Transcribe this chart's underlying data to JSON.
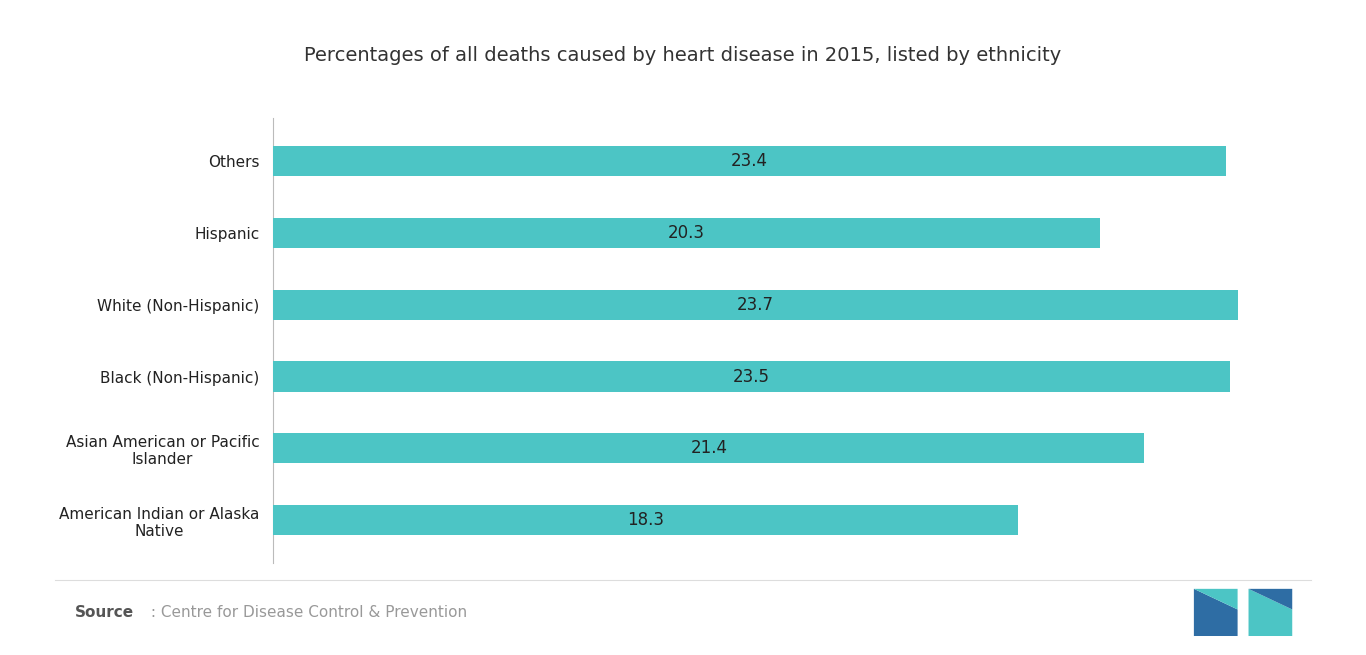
{
  "title": "Percentages of all deaths caused by heart disease in 2015, listed by ethnicity",
  "categories": [
    "American Indian or Alaska\nNative",
    "Asian American or Pacific\nIslander",
    "Black (Non-Hispanic)",
    "White (Non-Hispanic)",
    "Hispanic",
    "Others"
  ],
  "values": [
    18.3,
    21.4,
    23.5,
    23.7,
    20.3,
    23.4
  ],
  "bar_color": "#4CC5C5",
  "bar_label_color": "#222222",
  "title_color": "#333333",
  "background_color": "#ffffff",
  "xlim_max": 25.5,
  "bar_height": 0.42,
  "title_fontsize": 14,
  "label_fontsize": 11,
  "value_fontsize": 12,
  "source_fontsize": 11,
  "source_bold": "Source",
  "source_rest": " : Centre for Disease Control & Prevention",
  "source_color_bold": "#555555",
  "source_color_rest": "#999999",
  "spine_color": "#bbbbbb",
  "separator_color": "#dddddd"
}
